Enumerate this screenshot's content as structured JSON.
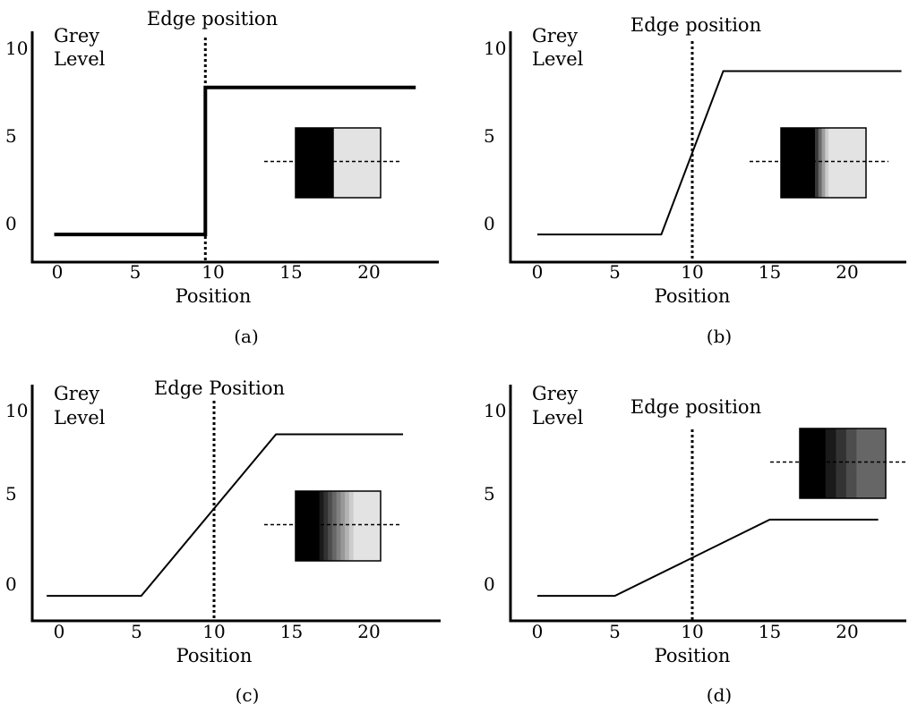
{
  "chart_data": [
    {
      "type": "line",
      "caption": "(a)",
      "ylabel_line1": "Grey",
      "ylabel_line2": "Level",
      "xlabel": "Position",
      "edge_label": "Edge position",
      "edge_x": 9.5,
      "x_ticks": [
        "0",
        "5",
        "10",
        "15",
        "20"
      ],
      "y_ticks": [
        "0",
        "5",
        "10"
      ],
      "x": [
        -0.2,
        9.5,
        9.5,
        23
      ],
      "y": [
        -0.5,
        -0.5,
        7.6,
        7.6
      ],
      "line_style": "thick",
      "inset": {
        "levels": [
          0.0,
          0.89
        ],
        "weights": [
          0.45,
          0.55
        ],
        "scan_line": true
      }
    },
    {
      "type": "line",
      "caption": "(b)",
      "ylabel_line1": "Grey",
      "ylabel_line2": "Level",
      "xlabel": "Position",
      "edge_label": "Edge position",
      "edge_x": 10,
      "x_ticks": [
        "0",
        "5",
        "10",
        "15",
        "20"
      ],
      "y_ticks": [
        "0",
        "5",
        "10"
      ],
      "x": [
        0,
        8,
        12,
        23.5
      ],
      "y": [
        -0.5,
        -0.5,
        8.5,
        8.5
      ],
      "line_style": "normal",
      "inset": {
        "levels": [
          0.0,
          0.22,
          0.42,
          0.62,
          0.8,
          0.89
        ],
        "weights": [
          0.4,
          0.04,
          0.04,
          0.04,
          0.04,
          0.44
        ],
        "scan_line": true
      }
    },
    {
      "type": "line",
      "caption": "(c)",
      "ylabel_line1": "Grey",
      "ylabel_line2": "Level",
      "xlabel": "Position",
      "edge_label": "Edge Position",
      "edge_x": 10,
      "x_ticks": [
        "0",
        "5",
        "10",
        "15",
        "20"
      ],
      "y_ticks": [
        "0",
        "5",
        "10"
      ],
      "x": [
        -0.8,
        5.3,
        14,
        22.2
      ],
      "y": [
        -0.5,
        -0.5,
        8.4,
        8.4
      ],
      "line_style": "normal",
      "inset": {
        "levels": [
          0.0,
          0.1,
          0.2,
          0.3,
          0.4,
          0.5,
          0.6,
          0.7,
          0.8,
          0.89
        ],
        "weights": [
          0.28,
          0.05,
          0.05,
          0.05,
          0.05,
          0.05,
          0.05,
          0.05,
          0.05,
          0.32
        ],
        "scan_line": true
      }
    },
    {
      "type": "line",
      "caption": "(d)",
      "ylabel_line1": "Grey",
      "ylabel_line2": "Level",
      "xlabel": "Position",
      "edge_label": "Edge position",
      "edge_x": 10,
      "x_ticks": [
        "0",
        "5",
        "10",
        "15",
        "20"
      ],
      "y_ticks": [
        "0",
        "5",
        "10"
      ],
      "x": [
        0,
        5,
        15,
        22
      ],
      "y": [
        -0.5,
        -0.5,
        3.7,
        3.7
      ],
      "line_style": "normal",
      "inset": {
        "levels": [
          0.0,
          0.1,
          0.2,
          0.3,
          0.4
        ],
        "weights": [
          0.3,
          0.12,
          0.12,
          0.12,
          0.34
        ],
        "scan_line": true
      }
    }
  ]
}
